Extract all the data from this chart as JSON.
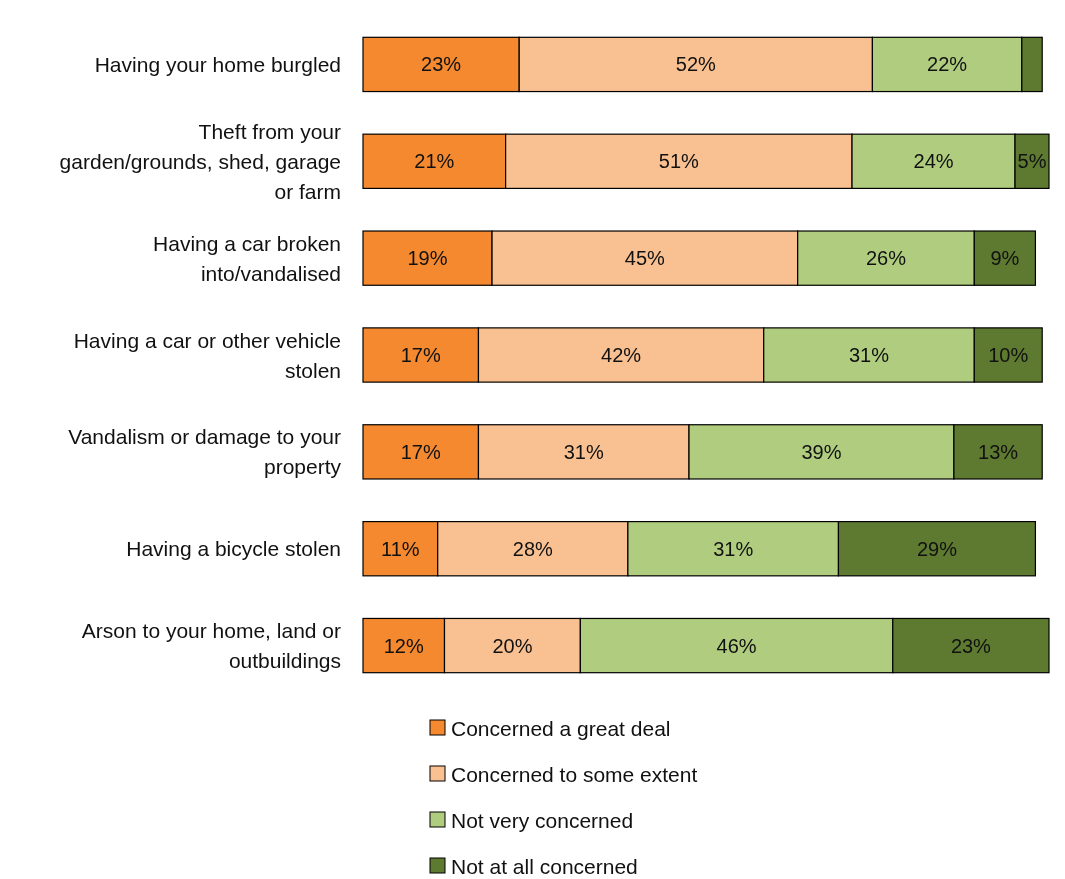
{
  "chart_data": {
    "type": "bar",
    "orientation": "horizontal",
    "stacked": true,
    "legend": "bottom",
    "categories": [
      "Having your home burgled",
      "Theft from your garden/grounds, shed, garage or farm",
      "Having a car broken into/vandalised",
      "Having a car or other vehicle stolen",
      "Vandalism or damage to your property",
      "Having a bicycle stolen",
      "Arson to your home, land or outbuildings"
    ],
    "series": [
      {
        "name": "Concerned a great deal",
        "color": "#f4892f",
        "values": [
          23,
          21,
          19,
          17,
          17,
          11,
          12
        ],
        "value_labels": [
          "23%",
          "21%",
          "19%",
          "17%",
          "17%",
          "11%",
          "12%"
        ]
      },
      {
        "name": "Concerned to some extent",
        "color": "#f9c191",
        "values": [
          52,
          51,
          45,
          42,
          31,
          28,
          20
        ],
        "value_labels": [
          "52%",
          "51%",
          "45%",
          "42%",
          "31%",
          "28%",
          "20%"
        ]
      },
      {
        "name": "Not very concerned",
        "color": "#b0cc7f",
        "values": [
          22,
          24,
          26,
          31,
          39,
          31,
          46
        ],
        "value_labels": [
          "22%",
          "24%",
          "26%",
          "31%",
          "39%",
          "31%",
          "46%"
        ]
      },
      {
        "name": "Not at all concerned",
        "color": "#5e7a30",
        "values": [
          3,
          5,
          9,
          10,
          13,
          29,
          23
        ],
        "value_labels": [
          null,
          "5%",
          "9%",
          "10%",
          "13%",
          "29%",
          "23%"
        ]
      }
    ]
  }
}
